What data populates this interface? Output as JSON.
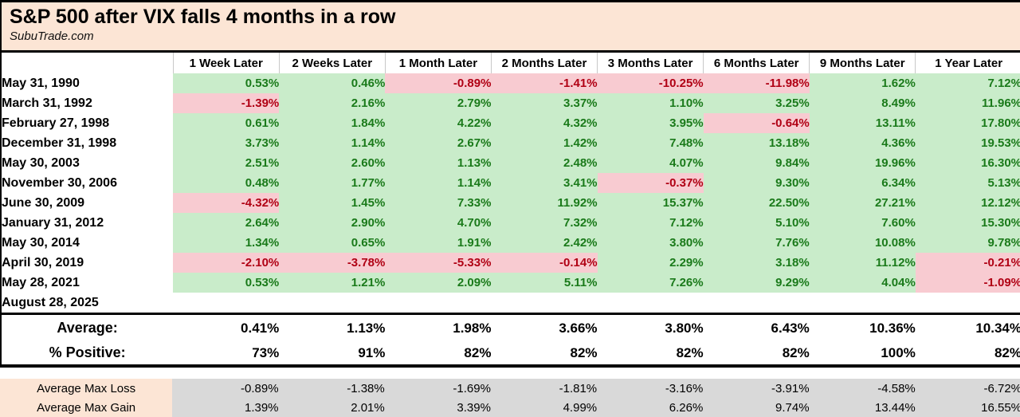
{
  "header": {
    "title": "S&P 500 after VIX falls 4 months in a row",
    "source": "SubuTrade.com"
  },
  "colors": {
    "band_bg": "#fce5d5",
    "positive_bg": "#c9ecca",
    "positive_text": "#1a7a1a",
    "negative_bg": "#f8cbd1",
    "negative_text": "#b00014",
    "gray_bg": "#d9d9d9"
  },
  "table": {
    "columns": [
      "1 Week Later",
      "2 Weeks Later",
      "1 Month Later",
      "2 Months Later",
      "3 Months Later",
      "6 Months Later",
      "9 Months Later",
      "1 Year Later"
    ],
    "rows": [
      {
        "date": "May 31, 1990",
        "values": [
          "0.53%",
          "0.46%",
          "-0.89%",
          "-1.41%",
          "-10.25%",
          "-11.98%",
          "1.62%",
          "7.12%"
        ]
      },
      {
        "date": "March 31, 1992",
        "values": [
          "-1.39%",
          "2.16%",
          "2.79%",
          "3.37%",
          "1.10%",
          "3.25%",
          "8.49%",
          "11.96%"
        ]
      },
      {
        "date": "February 27, 1998",
        "values": [
          "0.61%",
          "1.84%",
          "4.22%",
          "4.32%",
          "3.95%",
          "-0.64%",
          "13.11%",
          "17.80%"
        ]
      },
      {
        "date": "December 31, 1998",
        "values": [
          "3.73%",
          "1.14%",
          "2.67%",
          "1.42%",
          "7.48%",
          "13.18%",
          "4.36%",
          "19.53%"
        ]
      },
      {
        "date": "May 30, 2003",
        "values": [
          "2.51%",
          "2.60%",
          "1.13%",
          "2.48%",
          "4.07%",
          "9.84%",
          "19.96%",
          "16.30%"
        ]
      },
      {
        "date": "November 30, 2006",
        "values": [
          "0.48%",
          "1.77%",
          "1.14%",
          "3.41%",
          "-0.37%",
          "9.30%",
          "6.34%",
          "5.13%"
        ]
      },
      {
        "date": "June 30, 2009",
        "values": [
          "-4.32%",
          "1.45%",
          "7.33%",
          "11.92%",
          "15.37%",
          "22.50%",
          "27.21%",
          "12.12%"
        ]
      },
      {
        "date": "January 31, 2012",
        "values": [
          "2.64%",
          "2.90%",
          "4.70%",
          "7.32%",
          "7.12%",
          "5.10%",
          "7.60%",
          "15.30%"
        ]
      },
      {
        "date": "May 30, 2014",
        "values": [
          "1.34%",
          "0.65%",
          "1.91%",
          "2.42%",
          "3.80%",
          "7.76%",
          "10.08%",
          "9.78%"
        ]
      },
      {
        "date": "April 30, 2019",
        "values": [
          "-2.10%",
          "-3.78%",
          "-5.33%",
          "-0.14%",
          "2.29%",
          "3.18%",
          "11.12%",
          "-0.21%"
        ]
      },
      {
        "date": "May 28, 2021",
        "values": [
          "0.53%",
          "1.21%",
          "2.09%",
          "5.11%",
          "7.26%",
          "9.29%",
          "4.04%",
          "-1.09%"
        ]
      },
      {
        "date": "August 28, 2025",
        "values": [
          "",
          "",
          "",
          "",
          "",
          "",
          "",
          ""
        ]
      }
    ],
    "summary": {
      "average_label": "Average:",
      "average": [
        "0.41%",
        "1.13%",
        "1.98%",
        "3.66%",
        "3.80%",
        "6.43%",
        "10.36%",
        "10.34%"
      ],
      "pct_positive_label": "% Positive:",
      "pct_positive": [
        "73%",
        "91%",
        "82%",
        "82%",
        "82%",
        "82%",
        "100%",
        "82%"
      ]
    },
    "extremes": {
      "max_loss_label": "Average Max Loss",
      "max_loss": [
        "-0.89%",
        "-1.38%",
        "-1.69%",
        "-1.81%",
        "-3.16%",
        "-3.91%",
        "-4.58%",
        "-6.72%"
      ],
      "max_gain_label": "Average Max Gain",
      "max_gain": [
        "1.39%",
        "2.01%",
        "3.39%",
        "4.99%",
        "6.26%",
        "9.74%",
        "13.44%",
        "16.55%"
      ]
    }
  }
}
